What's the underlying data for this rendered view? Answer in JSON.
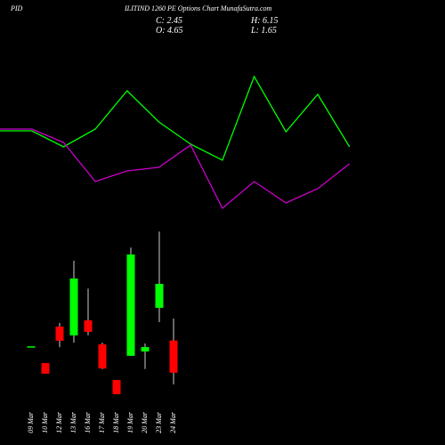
{
  "header": {
    "left": "PID",
    "title": "ILITIND 1260 PE Options Chart MunafaSutra.com",
    "close": "C: 2.45",
    "high": "H: 6.15",
    "open": "O: 4.65",
    "low": "L: 1.65"
  },
  "chart_data": [
    {
      "type": "line",
      "ylim": [
        0,
        100
      ],
      "series": [
        {
          "color": "#00ff00",
          "values": [
            51.5,
            51.5,
            42.5,
            52.5,
            74,
            56.5,
            44,
            35,
            82,
            51,
            72,
            42.5
          ]
        },
        {
          "color": "#cc00cc",
          "values": [
            52.5,
            52.5,
            45,
            23,
            29,
            31,
            43.5,
            8,
            23,
            11,
            19,
            33
          ]
        }
      ]
    },
    {
      "type": "candlestick",
      "ylim": [
        0,
        27.92
      ],
      "up_color": "#00ff00",
      "down_color": "#ff0000",
      "categories": [
        "09 Mar",
        "10 Mar",
        "12 Mar",
        "13 Mar",
        "16 Mar",
        "17 Mar",
        "18 Mar",
        "19 Mar",
        "20 Mar",
        "23 Mar",
        "24 Mar"
      ],
      "open": [
        4.25,
        3.11,
        5.6,
        5.0,
        6.03,
        4.39,
        1.95,
        3.6,
        3.9,
        6.88,
        4.65
      ],
      "high": [
        4.25,
        3.11,
        5.85,
        10.1,
        8.2,
        4.5,
        1.95,
        11.0,
        4.45,
        12.1,
        6.15
      ],
      "low": [
        4.25,
        2.38,
        4.2,
        4.5,
        5.0,
        2.7,
        0.98,
        3.6,
        2.7,
        5.9,
        1.65
      ],
      "close": [
        4.25,
        2.38,
        4.63,
        8.89,
        5.24,
        2.74,
        0.98,
        10.53,
        4.2,
        8.52,
        2.45
      ]
    }
  ]
}
